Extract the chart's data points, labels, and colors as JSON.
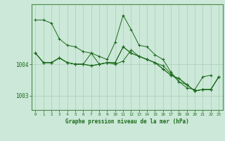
{
  "bg_color": "#cce8d8",
  "grid_color": "#aaccb8",
  "line_color": "#1a6b1a",
  "marker_color": "#1a6b1a",
  "xlabel": "Graphe pression niveau de la mer (hPa)",
  "xlabel_color": "#1a6b1a",
  "tick_color": "#1a6b1a",
  "spine_color": "#4a8a4a",
  "ylim": [
    1002.55,
    1005.9
  ],
  "xlim": [
    -0.5,
    23.5
  ],
  "yticks": [
    1003,
    1004
  ],
  "xticks": [
    0,
    1,
    2,
    3,
    4,
    5,
    6,
    7,
    8,
    9,
    10,
    11,
    12,
    13,
    14,
    15,
    16,
    17,
    18,
    19,
    20,
    21,
    22,
    23
  ],
  "series": [
    [
      1005.4,
      1005.4,
      1005.3,
      1004.8,
      1004.6,
      1004.55,
      1004.4,
      1004.35,
      1004.25,
      1004.15,
      1004.7,
      1005.55,
      1005.1,
      1004.6,
      1004.55,
      1004.3,
      1004.15,
      1003.75,
      1003.45,
      1003.25,
      1003.2,
      1003.6,
      1003.65,
      null
    ],
    [
      1004.35,
      1004.05,
      1004.05,
      1004.2,
      1004.05,
      1004.0,
      1004.0,
      1003.95,
      1004.0,
      1004.05,
      1004.05,
      1004.55,
      1004.35,
      1004.25,
      1004.15,
      1004.05,
      1003.85,
      1003.65,
      1003.55,
      1003.35,
      1003.15,
      1003.2,
      1003.2,
      1003.6
    ],
    [
      1004.35,
      1004.05,
      1004.05,
      1004.2,
      1004.05,
      1004.0,
      1004.0,
      1004.35,
      1004.0,
      1004.05,
      1004.0,
      1004.1,
      1004.45,
      1004.25,
      1004.15,
      1004.05,
      1003.95,
      1003.7,
      1003.45,
      1003.35,
      1003.15,
      1003.2,
      1003.2,
      1003.6
    ],
    [
      1004.35,
      1004.05,
      1004.05,
      1004.2,
      1004.05,
      1004.0,
      1004.0,
      1003.95,
      1004.0,
      1004.05,
      1004.05,
      1004.55,
      1004.35,
      1004.25,
      1004.15,
      1004.05,
      1003.85,
      1003.65,
      1003.55,
      1003.35,
      1003.15,
      1003.2,
      1003.2,
      1003.6
    ]
  ]
}
